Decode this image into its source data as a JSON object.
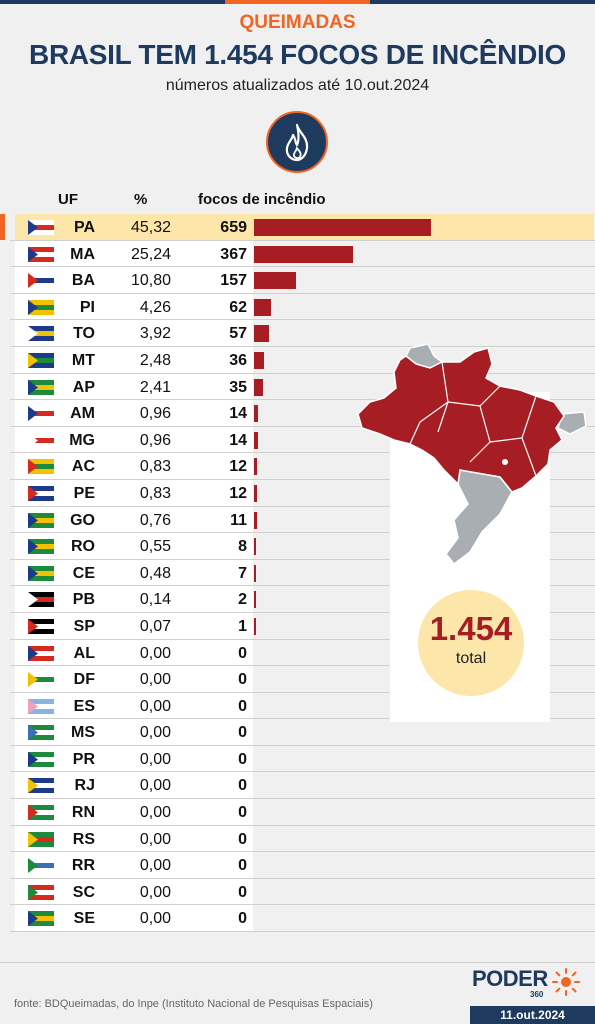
{
  "kicker": "QUEIMADAS",
  "title": "BRASIL TEM 1.454 FOCOS DE INCÊNDIO",
  "subtitle": "números atualizados até 10.out.2024",
  "colors": {
    "accent": "#f26422",
    "navy": "#1e3a5f",
    "bar": "#a61d24",
    "highlight": "#fde6a9",
    "map_gray": "#a9aeb2"
  },
  "icons": {
    "badge": "fire-icon"
  },
  "table": {
    "headers": {
      "uf": "UF",
      "pct": "%",
      "count": "focos de incêndio"
    }
  },
  "chart_data": {
    "type": "bar",
    "orientation": "horizontal",
    "categories": [
      "PA",
      "MA",
      "BA",
      "PI",
      "TO",
      "MT",
      "AP",
      "AM",
      "MG",
      "AC",
      "PE",
      "GO",
      "RO",
      "CE",
      "PB",
      "SP",
      "AL",
      "DF",
      "ES",
      "MS",
      "PR",
      "RJ",
      "RN",
      "RS",
      "RR",
      "SC",
      "SE"
    ],
    "values": [
      659,
      367,
      157,
      62,
      57,
      36,
      35,
      14,
      14,
      12,
      12,
      11,
      8,
      7,
      2,
      1,
      0,
      0,
      0,
      0,
      0,
      0,
      0,
      0,
      0,
      0,
      0
    ],
    "percent_labels": [
      "45,32",
      "25,24",
      "10,80",
      "4,26",
      "3,92",
      "2,48",
      "2,41",
      "0,96",
      "0,96",
      "0,83",
      "0,83",
      "0,76",
      "0,55",
      "0,48",
      "0,14",
      "0,07",
      "0,00",
      "0,00",
      "0,00",
      "0,00",
      "0,00",
      "0,00",
      "0,00",
      "0,00",
      "0,00",
      "0,00",
      "0,00"
    ],
    "value_labels": [
      "659",
      "367",
      "157",
      "62",
      "57",
      "36",
      "35",
      "14",
      "14",
      "12",
      "12",
      "11",
      "8",
      "7",
      "2",
      "1",
      "0",
      "0",
      "0",
      "0",
      "0",
      "0",
      "0",
      "0",
      "0",
      "0",
      "0"
    ],
    "xlim": [
      0,
      659
    ],
    "highlighted": "PA"
  },
  "total": {
    "value": "1.454",
    "label": "total"
  },
  "footer": {
    "source": "fonte: BDQueimadas, do Inpe (Instituto Nacional de Pesquisas Espaciais)",
    "brand": "PODER",
    "brand_number": "360",
    "date": "11.out.2024"
  }
}
